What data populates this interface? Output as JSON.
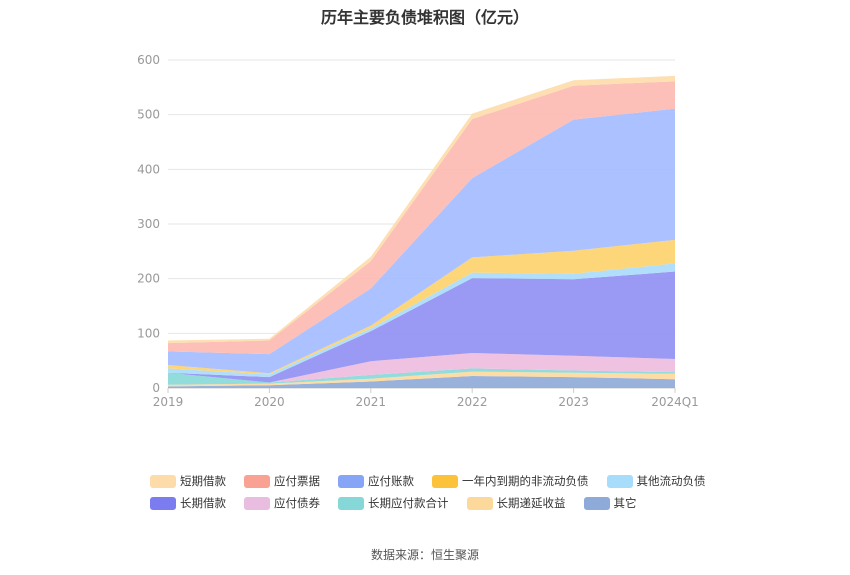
{
  "title": "历年主要负债堆积图（亿元）",
  "source": "数据来源：恒生聚源",
  "chart_data": {
    "type": "area",
    "stacked": true,
    "categories": [
      "2019",
      "2020",
      "2021",
      "2022",
      "2023",
      "2024Q1"
    ],
    "ylim": [
      0,
      600
    ],
    "yticks": [
      0,
      100,
      200,
      300,
      400,
      500,
      600
    ],
    "grid": true,
    "legend_position": "bottom",
    "series": [
      {
        "name": "其它",
        "color": "#8eaad8",
        "values": [
          3,
          5,
          12,
          22,
          20,
          16
        ]
      },
      {
        "name": "长期递延收益",
        "color": "#fdd89b",
        "values": [
          3,
          3,
          5,
          8,
          8,
          10
        ]
      },
      {
        "name": "长期应付款合计",
        "color": "#86d8d8",
        "values": [
          22,
          2,
          7,
          6,
          4,
          3
        ]
      },
      {
        "name": "应付债券",
        "color": "#eebbdf",
        "values": [
          0,
          0,
          25,
          28,
          27,
          24
        ]
      },
      {
        "name": "长期借款",
        "color": "#8f8ef2",
        "values": [
          0,
          10,
          55,
          137,
          140,
          160
        ]
      },
      {
        "name": "其他流动负债",
        "color": "#a8dcfb",
        "values": [
          8,
          5,
          5,
          10,
          10,
          15
        ]
      },
      {
        "name": "一年内到期的非流动负债",
        "color": "#fdd26a",
        "values": [
          6,
          2,
          5,
          28,
          42,
          43
        ]
      },
      {
        "name": "应付账款",
        "color": "#a3baff",
        "values": [
          25,
          35,
          68,
          145,
          240,
          240
        ]
      },
      {
        "name": "应付票据",
        "color": "#fcb9b0",
        "values": [
          15,
          25,
          50,
          108,
          62,
          50
        ]
      },
      {
        "name": "短期借款",
        "color": "#fddcaa",
        "values": [
          5,
          3,
          8,
          10,
          10,
          10
        ]
      }
    ]
  },
  "legend": [
    [
      {
        "name": "短期借款",
        "color": "#fddcaa"
      },
      {
        "name": "应付票据",
        "color": "#f9a193"
      },
      {
        "name": "应付账款",
        "color": "#86a5f7"
      },
      {
        "name": "一年内到期的非流动负债",
        "color": "#fcc23a"
      },
      {
        "name": "其他流动负债",
        "color": "#a8dcfb"
      }
    ],
    [
      {
        "name": "长期借款",
        "color": "#7b7cf0"
      },
      {
        "name": "应付债券",
        "color": "#e9bde0"
      },
      {
        "name": "长期应付款合计",
        "color": "#86d8d8"
      },
      {
        "name": "长期递延收益",
        "color": "#fdd89b"
      },
      {
        "name": "其它",
        "color": "#8eaad8"
      }
    ]
  ]
}
